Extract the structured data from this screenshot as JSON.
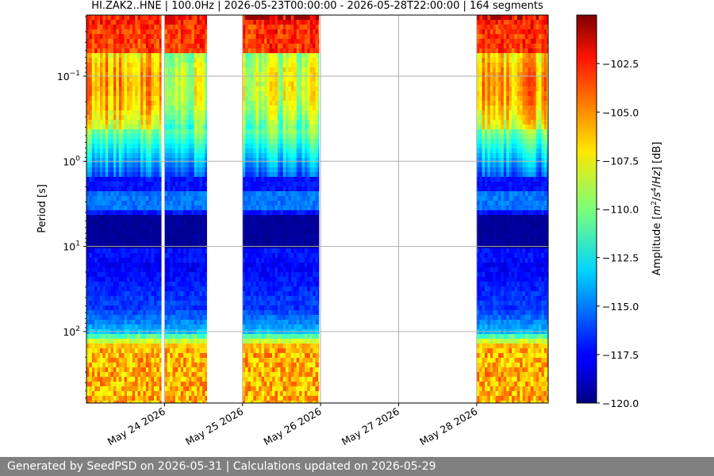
{
  "chart_data": {
    "type": "heatmap",
    "title": "HI.ZAK2..HNE | 100.0Hz | 2026-05-23T00:00:00 - 2026-05-28T22:00:00 | 164 segments",
    "xlabel": "",
    "ylabel": "Period [s]",
    "y_scale": "log",
    "y_inverted": true,
    "y_ticks": [
      {
        "value": 0.1,
        "base": "10",
        "exp": "−1"
      },
      {
        "value": 1,
        "base": "10",
        "exp": "0"
      },
      {
        "value": 10,
        "base": "10",
        "exp": "1"
      },
      {
        "value": 100,
        "base": "10",
        "exp": "2"
      }
    ],
    "x_ticks": [
      "May 24 2026",
      "May 25 2026",
      "May 26 2026",
      "May 27 2026",
      "May 28 2026"
    ],
    "x_range": [
      "2026-05-23T00:00:00",
      "2026-05-28T22:00:00"
    ],
    "y_range_approx": [
      0.02,
      200
    ],
    "data_segments": [
      {
        "start": "2026-05-23T00:00:00",
        "end": "2026-05-23T23:00:00"
      },
      {
        "start": "2026-05-24T00:00:00",
        "end": "2026-05-24T13:00:00"
      },
      {
        "start": "2026-05-25T00:00:00",
        "end": "2026-05-25T23:30:00"
      },
      {
        "start": "2026-05-28T00:00:00",
        "end": "2026-05-28T22:00:00"
      }
    ],
    "grid": true,
    "colorbar": {
      "label": "Amplitude [m²/s⁴/Hz] [dB]",
      "label_parts": [
        "Amplitude [",
        "m",
        "2",
        "/",
        "s",
        "4",
        "/",
        "Hz",
        "] [dB]"
      ],
      "range": [
        -120,
        -100
      ],
      "ticks": [
        "−102.5",
        "−105.0",
        "−107.5",
        "−110.0",
        "−112.5",
        "−115.0",
        "−117.5",
        "−120.0"
      ],
      "tick_values": [
        -102.5,
        -105.0,
        -107.5,
        -110.0,
        -112.5,
        -115.0,
        -117.5,
        -120.0
      ],
      "colormap": "jet"
    }
  },
  "footer": {
    "text": "Generated by SeedPSD on 2026-05-31 | Calculations updated on 2026-05-29"
  }
}
